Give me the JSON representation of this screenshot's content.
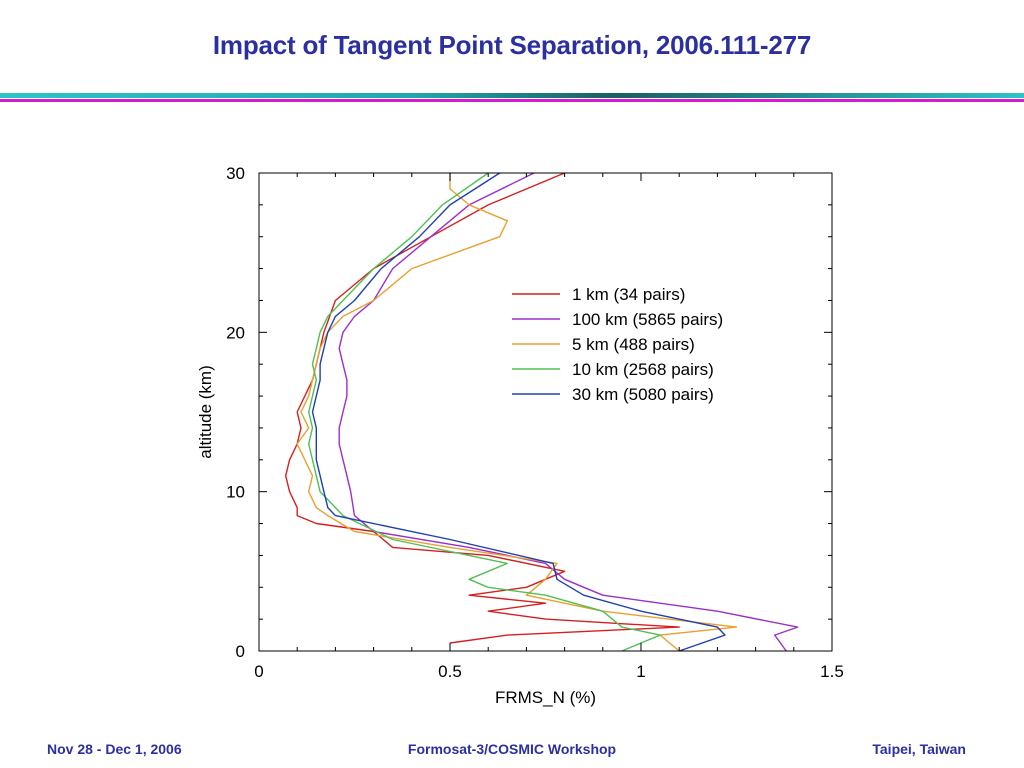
{
  "slide": {
    "title": "Impact of Tangent Point Separation, 2006.111-277",
    "footer_left": "Nov 28 - Dec 1, 2006",
    "footer_center": "Formosat-3/COSMIC Workshop",
    "footer_right": "Taipei, Taiwan"
  },
  "chart_data": {
    "type": "line",
    "xlabel": "FRMS_N  (%)",
    "ylabel": "altitude (km)",
    "xlim": [
      0,
      1.5
    ],
    "ylim": [
      0,
      30
    ],
    "xticks": [
      0,
      0.5,
      1,
      1.5
    ],
    "xtick_labels": [
      "0",
      "0.5",
      "1",
      "1.5"
    ],
    "yticks": [
      0,
      10,
      20,
      30
    ],
    "ytick_labels": [
      "0",
      "10",
      "20",
      "30"
    ],
    "grid": false,
    "legend_position": "top-right",
    "series": [
      {
        "name": "1 km (34 pairs)",
        "color": "#d42020",
        "points": [
          [
            0.5,
            0.5
          ],
          [
            0.65,
            1
          ],
          [
            1.1,
            1.5
          ],
          [
            0.75,
            2
          ],
          [
            0.6,
            2.5
          ],
          [
            0.75,
            3
          ],
          [
            0.55,
            3.5
          ],
          [
            0.7,
            4
          ],
          [
            0.8,
            5
          ],
          [
            0.6,
            6
          ],
          [
            0.35,
            6.5
          ],
          [
            0.3,
            7.5
          ],
          [
            0.15,
            8
          ],
          [
            0.1,
            8.5
          ],
          [
            0.1,
            9
          ],
          [
            0.08,
            10
          ],
          [
            0.07,
            11
          ],
          [
            0.08,
            12
          ],
          [
            0.1,
            13
          ],
          [
            0.11,
            14
          ],
          [
            0.1,
            15
          ],
          [
            0.12,
            16
          ],
          [
            0.14,
            17
          ],
          [
            0.15,
            18
          ],
          [
            0.16,
            19
          ],
          [
            0.17,
            20
          ],
          [
            0.2,
            22
          ],
          [
            0.3,
            24
          ],
          [
            0.45,
            26
          ],
          [
            0.6,
            28
          ],
          [
            0.8,
            30
          ]
        ]
      },
      {
        "name": "100 km (5865 pairs)",
        "color": "#9b30c8",
        "points": [
          [
            1.38,
            0
          ],
          [
            1.35,
            1
          ],
          [
            1.41,
            1.5
          ],
          [
            1.2,
            2.5
          ],
          [
            0.9,
            3.5
          ],
          [
            0.8,
            4.5
          ],
          [
            0.75,
            5.5
          ],
          [
            0.55,
            6.5
          ],
          [
            0.3,
            7.5
          ],
          [
            0.25,
            8.5
          ],
          [
            0.24,
            10
          ],
          [
            0.23,
            11
          ],
          [
            0.22,
            12
          ],
          [
            0.21,
            13
          ],
          [
            0.21,
            14
          ],
          [
            0.22,
            15
          ],
          [
            0.23,
            16
          ],
          [
            0.23,
            17
          ],
          [
            0.22,
            18
          ],
          [
            0.21,
            19
          ],
          [
            0.22,
            20
          ],
          [
            0.25,
            21
          ],
          [
            0.3,
            22
          ],
          [
            0.35,
            24
          ],
          [
            0.45,
            26
          ],
          [
            0.55,
            28
          ],
          [
            0.72,
            30
          ]
        ]
      },
      {
        "name": "5 km (488 pairs)",
        "color": "#e8a030",
        "points": [
          [
            1.1,
            0
          ],
          [
            1.05,
            1
          ],
          [
            1.25,
            1.5
          ],
          [
            0.9,
            2.5
          ],
          [
            0.7,
            3.5
          ],
          [
            0.75,
            4.5
          ],
          [
            0.78,
            5.5
          ],
          [
            0.5,
            6.5
          ],
          [
            0.25,
            7.5
          ],
          [
            0.18,
            8.5
          ],
          [
            0.15,
            9
          ],
          [
            0.13,
            10
          ],
          [
            0.14,
            11
          ],
          [
            0.12,
            12
          ],
          [
            0.1,
            13
          ],
          [
            0.13,
            14
          ],
          [
            0.11,
            15
          ],
          [
            0.13,
            16
          ],
          [
            0.14,
            17
          ],
          [
            0.15,
            18
          ],
          [
            0.16,
            19
          ],
          [
            0.18,
            20
          ],
          [
            0.22,
            21
          ],
          [
            0.3,
            22
          ],
          [
            0.4,
            24
          ],
          [
            0.63,
            26
          ],
          [
            0.65,
            27
          ],
          [
            0.55,
            28
          ],
          [
            0.5,
            29
          ],
          [
            0.5,
            30
          ]
        ]
      },
      {
        "name": "10 km (2568 pairs)",
        "color": "#50c050",
        "points": [
          [
            0.95,
            0
          ],
          [
            1,
            0.5
          ],
          [
            1.05,
            1
          ],
          [
            0.95,
            1.5
          ],
          [
            0.9,
            2.5
          ],
          [
            0.75,
            3.5
          ],
          [
            0.6,
            4
          ],
          [
            0.55,
            4.5
          ],
          [
            0.65,
            5.5
          ],
          [
            0.35,
            7
          ],
          [
            0.22,
            8.5
          ],
          [
            0.18,
            9.5
          ],
          [
            0.16,
            10
          ],
          [
            0.15,
            11
          ],
          [
            0.14,
            12
          ],
          [
            0.13,
            13
          ],
          [
            0.14,
            14
          ],
          [
            0.13,
            15
          ],
          [
            0.14,
            16
          ],
          [
            0.15,
            17
          ],
          [
            0.14,
            18
          ],
          [
            0.15,
            19
          ],
          [
            0.16,
            20
          ],
          [
            0.18,
            21
          ],
          [
            0.22,
            22
          ],
          [
            0.3,
            24
          ],
          [
            0.4,
            26
          ],
          [
            0.48,
            28
          ],
          [
            0.6,
            30
          ]
        ]
      },
      {
        "name": "30 km (5080 pairs)",
        "color": "#2040b0",
        "points": [
          [
            1.1,
            0
          ],
          [
            1.22,
            1
          ],
          [
            1.2,
            1.5
          ],
          [
            1,
            2.5
          ],
          [
            0.85,
            3.5
          ],
          [
            0.78,
            4.5
          ],
          [
            0.77,
            5.5
          ],
          [
            0.5,
            7
          ],
          [
            0.2,
            8.5
          ],
          [
            0.18,
            9
          ],
          [
            0.17,
            10
          ],
          [
            0.16,
            11
          ],
          [
            0.15,
            12
          ],
          [
            0.15,
            13
          ],
          [
            0.15,
            14
          ],
          [
            0.14,
            15
          ],
          [
            0.15,
            16
          ],
          [
            0.16,
            17
          ],
          [
            0.16,
            18
          ],
          [
            0.17,
            19
          ],
          [
            0.18,
            20
          ],
          [
            0.2,
            21
          ],
          [
            0.25,
            22
          ],
          [
            0.32,
            24
          ],
          [
            0.42,
            26
          ],
          [
            0.5,
            28
          ],
          [
            0.63,
            30
          ]
        ]
      }
    ]
  }
}
